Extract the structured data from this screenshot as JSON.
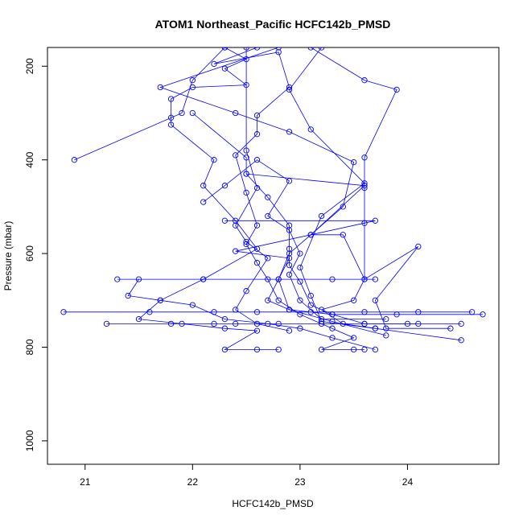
{
  "chart_data": {
    "type": "line",
    "title": "ATOM1 Northeast_Pacific HCFC142b_PMSD",
    "xlabel": "HCFC142b_PMSD",
    "ylabel": "Pressure (mbar)",
    "xlim": [
      20.65,
      24.85
    ],
    "ylim": [
      1050,
      160
    ],
    "y_reversed": true,
    "x_ticks": [
      "21",
      "22",
      "23",
      "24"
    ],
    "y_ticks": [
      "200",
      "400",
      "600",
      "800",
      "1000"
    ],
    "grid": false,
    "legend": "none",
    "marker": "open-circle",
    "color": "#0000ff",
    "series": [
      {
        "values": [
          [
            22.3,
            160
          ],
          [
            22.5,
            185
          ],
          [
            22.3,
            205
          ],
          [
            22.5,
            240
          ],
          [
            22.0,
            245
          ],
          [
            21.8,
            270
          ],
          [
            21.8,
            310
          ],
          [
            21.8,
            325
          ],
          [
            22.2,
            400
          ],
          [
            22.1,
            455
          ],
          [
            22.4,
            530
          ],
          [
            22.6,
            590
          ],
          [
            22.1,
            655
          ],
          [
            21.7,
            700
          ],
          [
            21.5,
            740
          ],
          [
            21.9,
            750
          ],
          [
            22.3,
            760
          ],
          [
            22.6,
            765
          ],
          [
            22.3,
            805
          ],
          [
            22.6,
            805
          ],
          [
            22.8,
            805
          ]
        ]
      },
      {
        "values": [
          [
            22.6,
            160
          ],
          [
            22.2,
            195
          ],
          [
            22.8,
            170
          ],
          [
            22.9,
            245
          ],
          [
            22.6,
            305
          ],
          [
            22.6,
            345
          ],
          [
            22.4,
            390
          ],
          [
            22.5,
            470
          ],
          [
            22.6,
            540
          ],
          [
            22.5,
            580
          ],
          [
            22.6,
            620
          ],
          [
            22.7,
            655
          ],
          [
            22.8,
            700
          ],
          [
            23.0,
            730
          ],
          [
            23.3,
            760
          ],
          [
            23.5,
            780
          ],
          [
            23.2,
            805
          ],
          [
            23.5,
            805
          ],
          [
            23.6,
            805
          ]
        ]
      },
      {
        "values": [
          [
            23.1,
            160
          ],
          [
            23.6,
            230
          ],
          [
            23.9,
            250
          ],
          [
            23.6,
            395
          ],
          [
            23.6,
            460
          ],
          [
            23.6,
            535
          ],
          [
            23.6,
            655
          ],
          [
            23.5,
            700
          ],
          [
            23.2,
            720
          ],
          [
            23.4,
            750
          ],
          [
            23.7,
            760
          ],
          [
            24.5,
            785
          ]
        ]
      },
      {
        "values": [
          [
            21.5,
            655
          ],
          [
            21.4,
            690
          ],
          [
            21.7,
            700
          ],
          [
            22.0,
            710
          ],
          [
            22.3,
            740
          ],
          [
            22.7,
            750
          ],
          [
            23.0,
            760
          ],
          [
            23.3,
            780
          ],
          [
            23.7,
            805
          ]
        ]
      },
      {
        "values": [
          [
            22.0,
            300
          ],
          [
            22.5,
            395
          ],
          [
            22.5,
            430
          ],
          [
            22.7,
            480
          ],
          [
            22.9,
            540
          ],
          [
            22.9,
            590
          ],
          [
            22.9,
            625
          ],
          [
            23.0,
            660
          ],
          [
            23.1,
            710
          ],
          [
            23.3,
            730
          ],
          [
            23.6,
            750
          ],
          [
            24.1,
            750
          ]
        ]
      },
      {
        "values": [
          [
            22.8,
            160
          ],
          [
            21.7,
            245
          ],
          [
            22.4,
            300
          ],
          [
            22.9,
            340
          ],
          [
            23.5,
            405
          ],
          [
            23.4,
            500
          ],
          [
            23.1,
            560
          ],
          [
            22.9,
            600
          ],
          [
            22.8,
            655
          ],
          [
            22.9,
            720
          ],
          [
            23.3,
            730
          ],
          [
            23.9,
            730
          ],
          [
            24.7,
            730
          ]
        ]
      },
      {
        "values": [
          [
            21.2,
            750
          ],
          [
            21.8,
            750
          ],
          [
            22.2,
            750
          ],
          [
            22.4,
            750
          ],
          [
            22.8,
            750
          ],
          [
            23.2,
            750
          ],
          [
            23.6,
            750
          ],
          [
            24.0,
            750
          ],
          [
            24.5,
            750
          ]
        ]
      },
      {
        "values": [
          [
            20.8,
            725
          ],
          [
            21.6,
            725
          ],
          [
            22.2,
            725
          ],
          [
            22.6,
            725
          ],
          [
            23.1,
            725
          ],
          [
            23.6,
            725
          ],
          [
            24.1,
            725
          ],
          [
            24.6,
            725
          ]
        ]
      },
      {
        "values": [
          [
            21.3,
            655
          ],
          [
            22.1,
            655
          ],
          [
            22.8,
            655
          ],
          [
            23.3,
            655
          ],
          [
            23.7,
            655
          ]
        ]
      },
      {
        "values": [
          [
            20.9,
            400
          ],
          [
            21.9,
            300
          ],
          [
            22.0,
            230
          ],
          [
            22.3,
            160
          ]
        ]
      },
      {
        "values": [
          [
            22.5,
            430
          ],
          [
            23.6,
            455
          ],
          [
            23.1,
            560
          ],
          [
            23.4,
            560
          ],
          [
            23.6,
            655
          ],
          [
            24.1,
            585
          ],
          [
            23.7,
            700
          ],
          [
            23.8,
            760
          ],
          [
            24.4,
            760
          ]
        ]
      },
      {
        "values": [
          [
            22.3,
            530
          ],
          [
            23.7,
            530
          ],
          [
            22.4,
            595
          ],
          [
            22.9,
            610
          ],
          [
            22.7,
            700
          ],
          [
            22.9,
            720
          ],
          [
            23.3,
            745
          ],
          [
            23.8,
            775
          ]
        ]
      },
      {
        "values": [
          [
            22.1,
            490
          ],
          [
            22.3,
            455
          ],
          [
            22.6,
            400
          ],
          [
            22.9,
            445
          ],
          [
            22.7,
            520
          ],
          [
            22.9,
            550
          ],
          [
            23.0,
            600
          ],
          [
            22.9,
            645
          ],
          [
            23.0,
            700
          ],
          [
            23.2,
            740
          ],
          [
            23.8,
            740
          ]
        ]
      },
      {
        "values": [
          [
            22.5,
            160
          ],
          [
            22.5,
            380
          ],
          [
            22.6,
            460
          ],
          [
            22.4,
            540
          ],
          [
            22.5,
            575
          ],
          [
            22.7,
            610
          ],
          [
            22.5,
            680
          ],
          [
            22.4,
            720
          ],
          [
            22.6,
            750
          ],
          [
            22.9,
            765
          ]
        ]
      },
      {
        "values": [
          [
            23.2,
            160
          ],
          [
            22.9,
            250
          ],
          [
            23.1,
            335
          ],
          [
            23.6,
            450
          ],
          [
            23.2,
            520
          ],
          [
            23.0,
            630
          ],
          [
            23.1,
            690
          ],
          [
            23.2,
            745
          ],
          [
            23.7,
            760
          ]
        ]
      }
    ]
  }
}
